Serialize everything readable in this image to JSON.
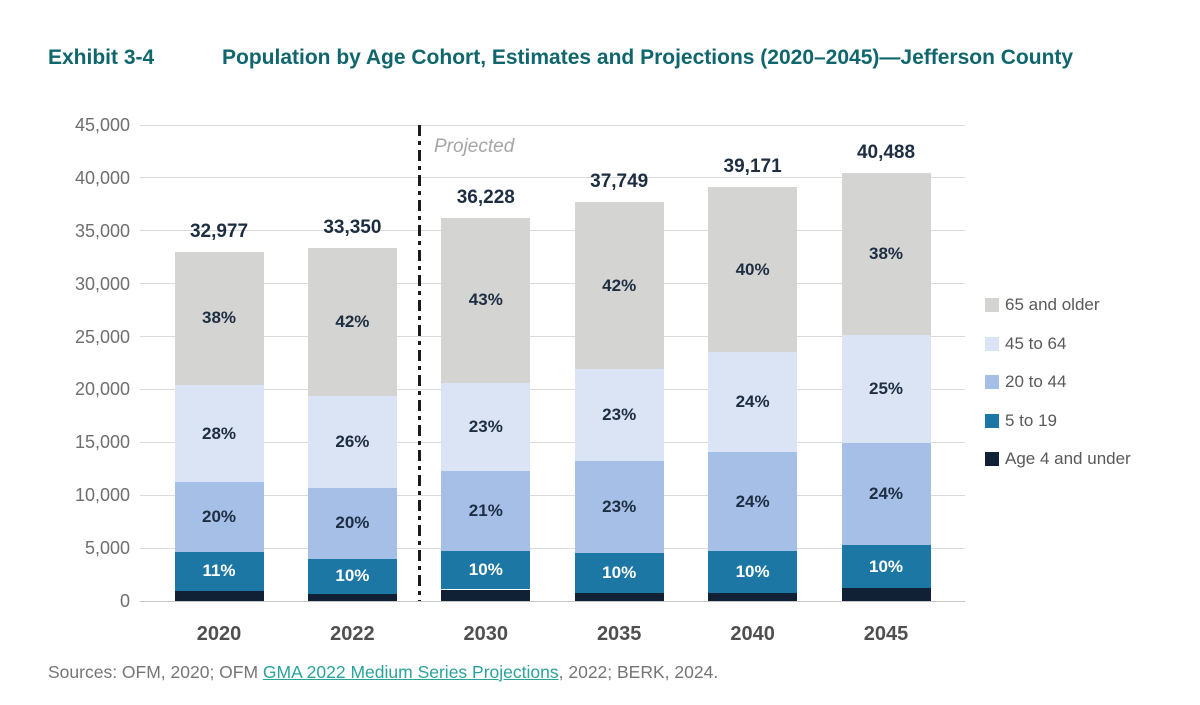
{
  "header": {
    "exhibit_label": "Exhibit 3-4",
    "title": "Population by Age Cohort, Estimates and Projections (2020–2045)—Jefferson County"
  },
  "chart_data": {
    "type": "bar",
    "stacked": true,
    "title": "Population by Age Cohort, Estimates and Projections (2020–2045)—Jefferson County",
    "categories": [
      "2020",
      "2022",
      "2030",
      "2035",
      "2040",
      "2045"
    ],
    "totals": [
      32977,
      33350,
      36228,
      37749,
      39171,
      40488
    ],
    "total_labels": [
      "32,977",
      "33,350",
      "36,228",
      "37,749",
      "39,171",
      "40,488"
    ],
    "series": [
      {
        "name": "Age 4 and under",
        "color": "#102035",
        "pct": [
          3,
          2,
          3,
          2,
          2,
          3
        ],
        "show_labels": false,
        "label_color": "#ffffff"
      },
      {
        "name": "5 to 19",
        "color": "#1d77a4",
        "pct": [
          11,
          10,
          10,
          10,
          10,
          10
        ],
        "show_labels": true,
        "label_color": "#ffffff"
      },
      {
        "name": "20 to 44",
        "color": "#a5bfe6",
        "pct": [
          20,
          20,
          21,
          23,
          24,
          24
        ],
        "show_labels": true,
        "label_color": "#1d2d42"
      },
      {
        "name": "45 to 64",
        "color": "#dbe4f5",
        "pct": [
          28,
          26,
          23,
          23,
          24,
          25
        ],
        "show_labels": true,
        "label_color": "#1d2d42"
      },
      {
        "name": "65 and older",
        "color": "#d4d4d2",
        "pct": [
          38,
          42,
          43,
          42,
          40,
          38
        ],
        "show_labels": true,
        "label_color": "#1d2d42"
      }
    ],
    "y_axis": {
      "min": 0,
      "max": 45000,
      "step": 5000,
      "tick_labels": [
        "0",
        "5,000",
        "10,000",
        "15,000",
        "20,000",
        "25,000",
        "30,000",
        "35,000",
        "40,000",
        "45,000"
      ]
    },
    "grid": true,
    "projected_label": "Projected",
    "projected_divider_after_category": "2022",
    "legend": {
      "position": "right",
      "items_top_to_bottom": [
        "65 and older",
        "45 to 64",
        "20 to 44",
        "5 to 19",
        "Age 4 and under"
      ]
    }
  },
  "sources": {
    "prefix": "Sources: OFM, 2020; OFM ",
    "link_text": "GMA 2022 Medium Series Projections",
    "suffix": ", 2022; BERK, 2024."
  }
}
